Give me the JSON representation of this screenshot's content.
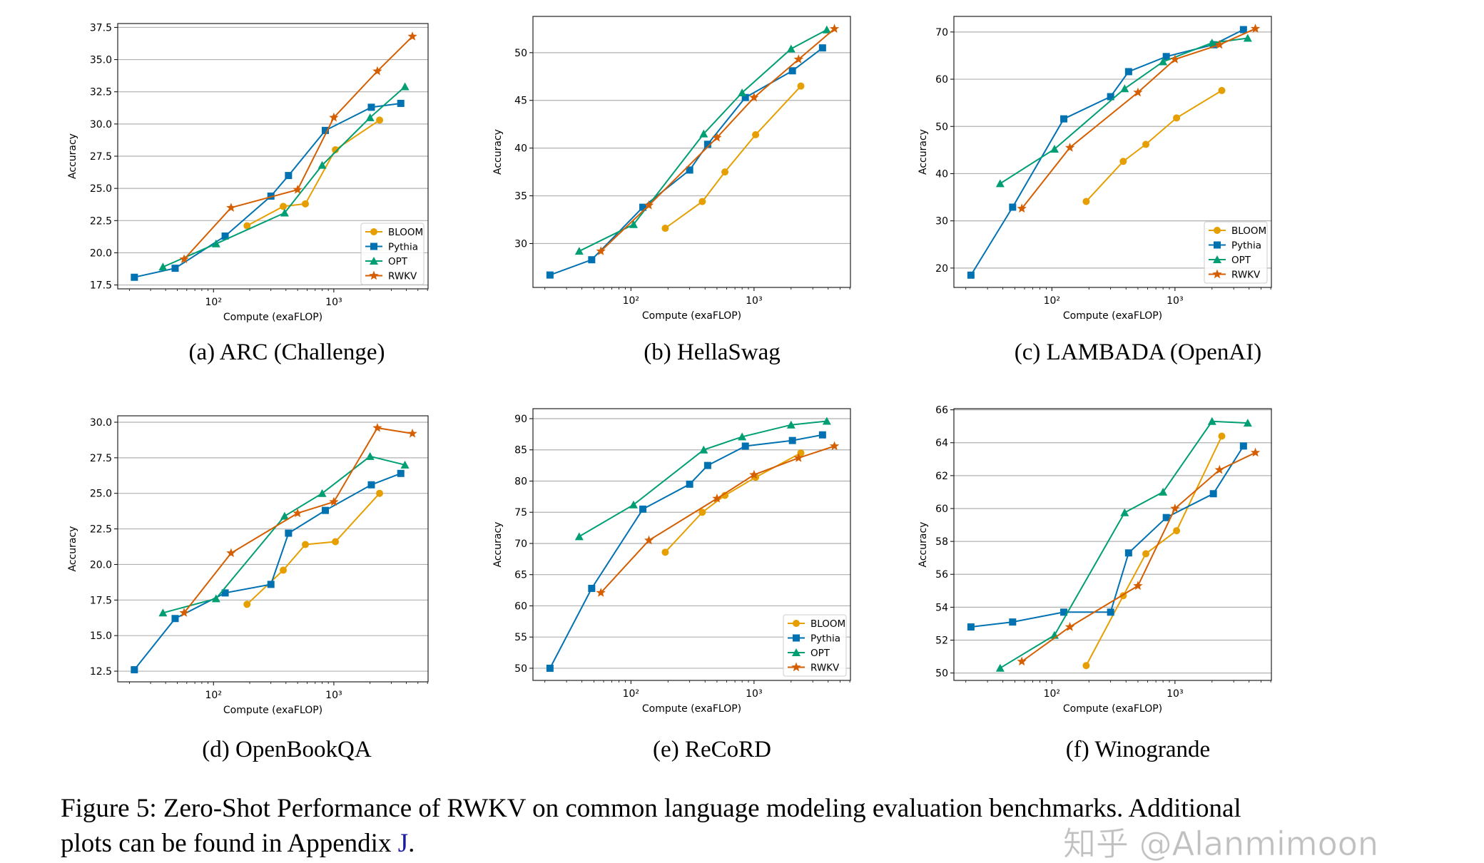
{
  "series_style": {
    "BLOOM": {
      "color": "#E69F00",
      "marker": "circle"
    },
    "Pythia": {
      "color": "#0072B2",
      "marker": "square"
    },
    "OPT": {
      "color": "#009E73",
      "marker": "triangle"
    },
    "RWKV": {
      "color": "#D55E00",
      "marker": "star"
    }
  },
  "chart_data": [
    {
      "type": "line",
      "caption": "(a) ARC (Challenge)",
      "xlabel": "Compute (exaFLOP)",
      "ylabel": "Accuracy",
      "xscale": "log",
      "xlim": [
        16,
        6070
      ],
      "ylim": [
        17.2,
        37.8
      ],
      "yticks": [
        17.5,
        20.0,
        22.5,
        25.0,
        27.5,
        30.0,
        32.5,
        35.0,
        37.5
      ],
      "ytick_labels": [
        "17.5",
        "20.0",
        "22.5",
        "25.0",
        "27.5",
        "30.0",
        "32.5",
        "35.0",
        "37.5"
      ],
      "xticks": [
        100,
        1000
      ],
      "xtick_labels": [
        "10²",
        "10³"
      ],
      "grid": "y",
      "legend": "lower right",
      "series": [
        {
          "name": "BLOOM",
          "x": [
            190,
            380,
            580,
            1030,
            2400
          ],
          "y": [
            22.1,
            23.6,
            23.8,
            28.0,
            30.3
          ]
        },
        {
          "name": "Pythia",
          "x": [
            22,
            48,
            125,
            300,
            420,
            850,
            2050,
            3600
          ],
          "y": [
            18.1,
            18.8,
            21.3,
            24.4,
            26.0,
            29.5,
            31.3,
            31.6
          ]
        },
        {
          "name": "OPT",
          "x": [
            38,
            105,
            390,
            800,
            2000,
            3900
          ],
          "y": [
            18.9,
            20.7,
            23.1,
            26.8,
            30.5,
            32.9
          ]
        },
        {
          "name": "RWKV",
          "x": [
            57,
            140,
            500,
            1000,
            2300,
            4500
          ],
          "y": [
            19.5,
            23.5,
            24.9,
            30.5,
            34.1,
            36.8
          ]
        }
      ]
    },
    {
      "type": "line",
      "caption": "(b) HellaSwag",
      "xlabel": "Compute (exaFLOP)",
      "ylabel": "Accuracy",
      "xscale": "log",
      "xlim": [
        16,
        6070
      ],
      "ylim": [
        25.4,
        53.8
      ],
      "yticks": [
        30,
        35,
        40,
        45,
        50
      ],
      "ytick_labels": [
        "30",
        "35",
        "40",
        "45",
        "50"
      ],
      "xticks": [
        100,
        1000
      ],
      "xtick_labels": [
        "10²",
        "10³"
      ],
      "grid": "y",
      "legend": "none",
      "series": [
        {
          "name": "BLOOM",
          "x": [
            190,
            380,
            580,
            1030,
            2400
          ],
          "y": [
            31.6,
            34.4,
            37.5,
            41.4,
            46.5
          ]
        },
        {
          "name": "Pythia",
          "x": [
            22,
            48,
            125,
            300,
            420,
            850,
            2050,
            3600
          ],
          "y": [
            26.7,
            28.3,
            33.8,
            37.7,
            40.4,
            45.3,
            48.1,
            50.5
          ]
        },
        {
          "name": "OPT",
          "x": [
            38,
            105,
            390,
            800,
            2000,
            3900
          ],
          "y": [
            29.2,
            32.0,
            41.5,
            45.8,
            50.4,
            52.4
          ]
        },
        {
          "name": "RWKV",
          "x": [
            57,
            140,
            500,
            1000,
            2300,
            4500
          ],
          "y": [
            29.2,
            34.0,
            41.1,
            45.3,
            49.3,
            52.5
          ]
        }
      ]
    },
    {
      "type": "line",
      "caption": "(c) LAMBADA (OpenAI)",
      "xlabel": "Compute (exaFLOP)",
      "ylabel": "Accuracy",
      "xscale": "log",
      "xlim": [
        16,
        6070
      ],
      "ylim": [
        15.9,
        73.3
      ],
      "yticks": [
        20,
        30,
        40,
        50,
        60,
        70
      ],
      "ytick_labels": [
        "20",
        "30",
        "40",
        "50",
        "60",
        "70"
      ],
      "xticks": [
        100,
        1000
      ],
      "xtick_labels": [
        "10²",
        "10³"
      ],
      "grid": "y",
      "legend": "lower right",
      "series": [
        {
          "name": "BLOOM",
          "x": [
            190,
            380,
            580,
            1030,
            2400
          ],
          "y": [
            34.1,
            42.6,
            46.2,
            51.8,
            57.6
          ]
        },
        {
          "name": "Pythia",
          "x": [
            22,
            48,
            125,
            300,
            420,
            850,
            2050,
            3600
          ],
          "y": [
            18.5,
            32.9,
            51.6,
            56.3,
            61.6,
            64.8,
            67.3,
            70.5
          ]
        },
        {
          "name": "OPT",
          "x": [
            38,
            105,
            390,
            800,
            2000,
            3900
          ],
          "y": [
            37.9,
            45.2,
            58.0,
            63.7,
            67.7,
            68.7
          ]
        },
        {
          "name": "RWKV",
          "x": [
            57,
            140,
            500,
            1000,
            2300,
            4500
          ],
          "y": [
            32.6,
            45.5,
            57.2,
            64.2,
            67.3,
            70.7
          ]
        }
      ]
    },
    {
      "type": "line",
      "caption": "(d) OpenBookQA",
      "xlabel": "Compute (exaFLOP)",
      "ylabel": "Accuracy",
      "xscale": "log",
      "xlim": [
        16,
        6070
      ],
      "ylim": [
        11.75,
        30.45
      ],
      "yticks": [
        12.5,
        15.0,
        17.5,
        20.0,
        22.5,
        25.0,
        27.5,
        30.0
      ],
      "ytick_labels": [
        "12.5",
        "15.0",
        "17.5",
        "20.0",
        "22.5",
        "25.0",
        "27.5",
        "30.0"
      ],
      "xticks": [
        100,
        1000
      ],
      "xtick_labels": [
        "10²",
        "10³"
      ],
      "grid": "y",
      "legend": "none",
      "series": [
        {
          "name": "BLOOM",
          "x": [
            190,
            380,
            580,
            1030,
            2400
          ],
          "y": [
            17.2,
            19.6,
            21.4,
            21.6,
            25.0
          ]
        },
        {
          "name": "Pythia",
          "x": [
            22,
            48,
            125,
            300,
            420,
            850,
            2050,
            3600
          ],
          "y": [
            12.6,
            16.2,
            18.0,
            18.6,
            22.2,
            23.8,
            25.6,
            26.4
          ]
        },
        {
          "name": "OPT",
          "x": [
            38,
            105,
            390,
            800,
            2000,
            3900
          ],
          "y": [
            16.6,
            17.6,
            23.4,
            25.0,
            27.6,
            27.0
          ]
        },
        {
          "name": "RWKV",
          "x": [
            57,
            140,
            500,
            1000,
            2300,
            4500
          ],
          "y": [
            16.6,
            20.8,
            23.6,
            24.4,
            29.6,
            29.2
          ]
        }
      ]
    },
    {
      "type": "line",
      "caption": "(e) ReCoRD",
      "xlabel": "Compute (exaFLOP)",
      "ylabel": "Accuracy",
      "xscale": "log",
      "xlim": [
        16,
        6070
      ],
      "ylim": [
        48.05,
        91.6
      ],
      "yticks": [
        50,
        55,
        60,
        65,
        70,
        75,
        80,
        85,
        90
      ],
      "ytick_labels": [
        "50",
        "55",
        "60",
        "65",
        "70",
        "75",
        "80",
        "85",
        "90"
      ],
      "xticks": [
        100,
        1000
      ],
      "xtick_labels": [
        "10²",
        "10³"
      ],
      "grid": "y",
      "legend": "lower right",
      "series": [
        {
          "name": "BLOOM",
          "x": [
            190,
            380,
            580,
            1030,
            2400
          ],
          "y": [
            68.6,
            75.0,
            77.7,
            80.6,
            84.5
          ]
        },
        {
          "name": "Pythia",
          "x": [
            22,
            48,
            125,
            300,
            420,
            850,
            2050,
            3600
          ],
          "y": [
            50.0,
            62.8,
            75.5,
            79.5,
            82.5,
            85.6,
            86.5,
            87.4
          ]
        },
        {
          "name": "OPT",
          "x": [
            38,
            105,
            390,
            800,
            2000,
            3900
          ],
          "y": [
            71.1,
            76.2,
            85.0,
            87.1,
            89.0,
            89.6
          ]
        },
        {
          "name": "RWKV",
          "x": [
            57,
            140,
            500,
            1000,
            2300,
            4500
          ],
          "y": [
            62.1,
            70.5,
            77.2,
            81.0,
            83.7,
            85.6
          ]
        }
      ]
    },
    {
      "type": "line",
      "caption": "(f) Winogrande",
      "xlabel": "Compute (exaFLOP)",
      "ylabel": "Accuracy",
      "xscale": "log",
      "xlim": [
        16,
        6070
      ],
      "ylim": [
        49.55,
        66.07
      ],
      "yticks": [
        50,
        52,
        54,
        56,
        58,
        60,
        62,
        64,
        66
      ],
      "ytick_labels": [
        "50",
        "52",
        "54",
        "56",
        "58",
        "60",
        "62",
        "64",
        "66"
      ],
      "xticks": [
        100,
        1000
      ],
      "xtick_labels": [
        "10²",
        "10³"
      ],
      "grid": "y",
      "legend": "none",
      "series": [
        {
          "name": "BLOOM",
          "x": [
            190,
            380,
            580,
            1030,
            2400
          ],
          "y": [
            50.45,
            54.7,
            57.25,
            58.65,
            64.4
          ]
        },
        {
          "name": "Pythia",
          "x": [
            22,
            48,
            125,
            300,
            420,
            850,
            2050,
            3600
          ],
          "y": [
            52.8,
            53.1,
            53.7,
            53.7,
            57.3,
            59.45,
            60.9,
            63.8
          ]
        },
        {
          "name": "OPT",
          "x": [
            38,
            105,
            390,
            800,
            2000,
            3900
          ],
          "y": [
            50.3,
            52.3,
            59.75,
            61.0,
            65.3,
            65.2
          ]
        },
        {
          "name": "RWKV",
          "x": [
            57,
            140,
            500,
            1000,
            2300,
            4500
          ],
          "y": [
            50.7,
            52.8,
            55.3,
            60.0,
            62.35,
            63.4
          ]
        }
      ]
    }
  ],
  "figure_caption": {
    "line1": "Figure 5: Zero-Shot Performance of RWKV on common language modeling evaluation benchmarks. Additional",
    "line2_prefix": "plots can be found in Appendix ",
    "appendix_link": "J",
    "line2_suffix": "."
  },
  "watermark": "知乎 @Alanmimoon"
}
